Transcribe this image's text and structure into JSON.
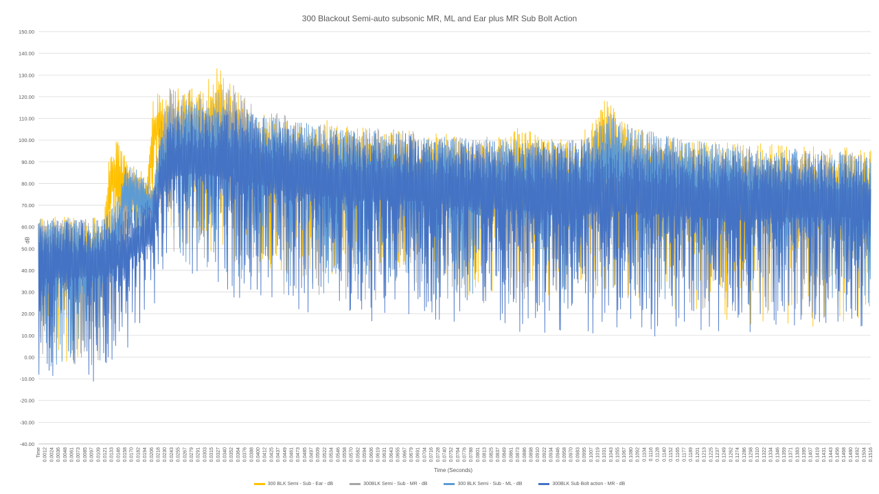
{
  "chart_data": {
    "type": "line",
    "title": "300 Blackout Semi-auto subsonic MR, ML and Ear plus MR Sub Bolt Action",
    "xlabel": "Time (Seconds)",
    "ylabel": "dB",
    "ylim": [
      -40,
      150
    ],
    "xlim": [
      0,
      0.154
    ],
    "y_ticks": [
      "150.00",
      "140.00",
      "130.00",
      "120.00",
      "110.00",
      "100.00",
      "90.00",
      "80.00",
      "70.00",
      "60.00",
      "50.00",
      "40.00",
      "30.00",
      "20.00",
      "10.00",
      "0.00",
      "-10.00",
      "-20.00",
      "-30.00",
      "-40.00"
    ],
    "x_ticks": [
      "Time",
      "0.0012",
      "0.0024",
      "0.0036",
      "0.0048",
      "0.0061",
      "0.0073",
      "0.0085",
      "0.0097",
      "0.0109",
      "0.0121",
      "0.0133",
      "0.0146",
      "0.0158",
      "0.0170",
      "0.0182",
      "0.0194",
      "0.0206",
      "0.0218",
      "0.0230",
      "0.0243",
      "0.0255",
      "0.0267",
      "0.0279",
      "0.0291",
      "0.0303",
      "0.0315",
      "0.0327",
      "0.0340",
      "0.0352",
      "0.0364",
      "0.0376",
      "0.0388",
      "0.0400",
      "0.0412",
      "0.0425",
      "0.0437",
      "0.0449",
      "0.0461",
      "0.0473",
      "0.0485",
      "0.0497",
      "0.0509",
      "0.0522",
      "0.0534",
      "0.0546",
      "0.0558",
      "0.0570",
      "0.0582",
      "0.0594",
      "0.0606",
      "0.0619",
      "0.0631",
      "0.0643",
      "0.0655",
      "0.0667",
      "0.0679",
      "0.0691",
      "0.0704",
      "0.0716",
      "0.0728",
      "0.0740",
      "0.0752",
      "0.0764",
      "0.0776",
      "0.0788",
      "0.0801",
      "0.0813",
      "0.0825",
      "0.0837",
      "0.0849",
      "0.0861",
      "0.0873",
      "0.0886",
      "0.0898",
      "0.0910",
      "0.0922",
      "0.0934",
      "0.0946",
      "0.0958",
      "0.0970",
      "0.0983",
      "0.0995",
      "0.1007",
      "0.1019",
      "0.1031",
      "0.1043",
      "0.1055",
      "0.1067",
      "0.1080",
      "0.1092",
      "0.1104",
      "0.1116",
      "0.1128",
      "0.1140",
      "0.1152",
      "0.1165",
      "0.1177",
      "0.1189",
      "0.1201",
      "0.1213",
      "0.1225",
      "0.1237",
      "0.1249",
      "0.1262",
      "0.1274",
      "0.1286",
      "0.1298",
      "0.1310",
      "0.1322",
      "0.1334",
      "0.1346",
      "0.1359",
      "0.1371",
      "0.1383",
      "0.1395",
      "0.1407",
      "0.1419",
      "0.1431",
      "0.1443",
      "0.1456",
      "0.1468",
      "0.1480",
      "0.1492",
      "0.1504",
      "0.1516"
    ],
    "grid": true,
    "legend_position": "bottom",
    "series": [
      {
        "name": "300 BLK Semi - Sub  - Ear - dB",
        "color": "#FFC000",
        "envelope": {
          "time": [
            0,
            0.0085,
            0.0121,
            0.0128,
            0.0135,
            0.0146,
            0.0152,
            0.017,
            0.019,
            0.02,
            0.0212,
            0.0222,
            0.024,
            0.027,
            0.031,
            0.033,
            0.034,
            0.035,
            0.04,
            0.045,
            0.05,
            0.0522,
            0.056,
            0.06,
            0.065,
            0.07,
            0.075,
            0.08,
            0.087,
            0.0886,
            0.093,
            0.1,
            0.1031,
            0.1043,
            0.1055,
            0.1067,
            0.11,
            0.115,
            0.12,
            0.13,
            0.14,
            0.15,
            0.154
          ],
          "max_db": [
            65,
            65,
            65,
            90,
            104,
            102,
            96,
            89,
            86,
            80,
            118,
            126,
            124,
            124,
            127,
            133,
            138,
            127,
            114,
            109,
            107,
            110,
            108,
            106,
            105,
            104,
            103,
            101,
            102,
            110,
            101,
            101,
            112,
            120,
            118,
            114,
            106,
            102,
            100,
            99,
            98,
            97,
            96
          ],
          "min_db": [
            -3,
            -2,
            4,
            12,
            24,
            40,
            48,
            52,
            55,
            58,
            60,
            62,
            55,
            50,
            45,
            45,
            45,
            45,
            40,
            38,
            36,
            36,
            34,
            32,
            30,
            30,
            30,
            28,
            28,
            28,
            28,
            28,
            28,
            30,
            30,
            30,
            28,
            24,
            20,
            15,
            15,
            12,
            12
          ]
        }
      },
      {
        "name": "300BLK Semi - Sub - MR - dB",
        "color": "#A5A5A5",
        "envelope": {
          "time": [
            0,
            0.0121,
            0.0146,
            0.016,
            0.019,
            0.0212,
            0.0225,
            0.0243,
            0.03,
            0.035,
            0.0364,
            0.038,
            0.04,
            0.05,
            0.06,
            0.07,
            0.08,
            0.09,
            0.1,
            0.106,
            0.11,
            0.12,
            0.13,
            0.14,
            0.154
          ],
          "max_db": [
            64,
            64,
            72,
            88,
            84,
            80,
            108,
            124,
            122,
            124,
            128,
            120,
            116,
            108,
            106,
            104,
            102,
            101,
            100,
            114,
            106,
            100,
            98,
            96,
            94
          ],
          "min_db": [
            -8,
            -6,
            20,
            40,
            45,
            50,
            55,
            50,
            40,
            35,
            35,
            35,
            30,
            28,
            26,
            25,
            24,
            23,
            24,
            26,
            24,
            22,
            20,
            18,
            18
          ]
        }
      },
      {
        "name": "300 BLK Semi - Sub - ML - dB",
        "color": "#5B9BD5",
        "envelope": {
          "time": [
            0,
            0.0121,
            0.0146,
            0.0158,
            0.017,
            0.019,
            0.021,
            0.0225,
            0.0243,
            0.03,
            0.035,
            0.04,
            0.05,
            0.06,
            0.07,
            0.08,
            0.09,
            0.1,
            0.105,
            0.1067,
            0.11,
            0.12,
            0.13,
            0.14,
            0.154
          ],
          "max_db": [
            64,
            64,
            72,
            88,
            90,
            84,
            78,
            100,
            118,
            117,
            118,
            112,
            108,
            105,
            103,
            101,
            100,
            100,
            112,
            115,
            106,
            100,
            98,
            96,
            94
          ],
          "min_db": [
            -5,
            -4,
            15,
            36,
            42,
            45,
            48,
            50,
            45,
            40,
            35,
            32,
            30,
            28,
            26,
            25,
            24,
            24,
            26,
            28,
            24,
            22,
            20,
            18,
            18
          ]
        }
      },
      {
        "name": "300BLK Sub Bolt action - MR - dB",
        "color": "#4472C4",
        "envelope": {
          "time": [
            0,
            0.0061,
            0.0121,
            0.015,
            0.019,
            0.0212,
            0.0225,
            0.0243,
            0.03,
            0.035,
            0.04,
            0.045,
            0.05,
            0.06,
            0.07,
            0.08,
            0.09,
            0.1,
            0.11,
            0.12,
            0.13,
            0.14,
            0.15,
            0.154
          ],
          "max_db": [
            66,
            64,
            64,
            66,
            70,
            75,
            100,
            112,
            114,
            115,
            112,
            108,
            106,
            104,
            103,
            100,
            99,
            99,
            98,
            96,
            95,
            94,
            93,
            92
          ],
          "min_db": [
            -19,
            -12,
            -11,
            0,
            10,
            18,
            30,
            35,
            30,
            25,
            22,
            20,
            18,
            16,
            15,
            12,
            10,
            8,
            10,
            8,
            5,
            10,
            12,
            12
          ]
        }
      }
    ]
  }
}
